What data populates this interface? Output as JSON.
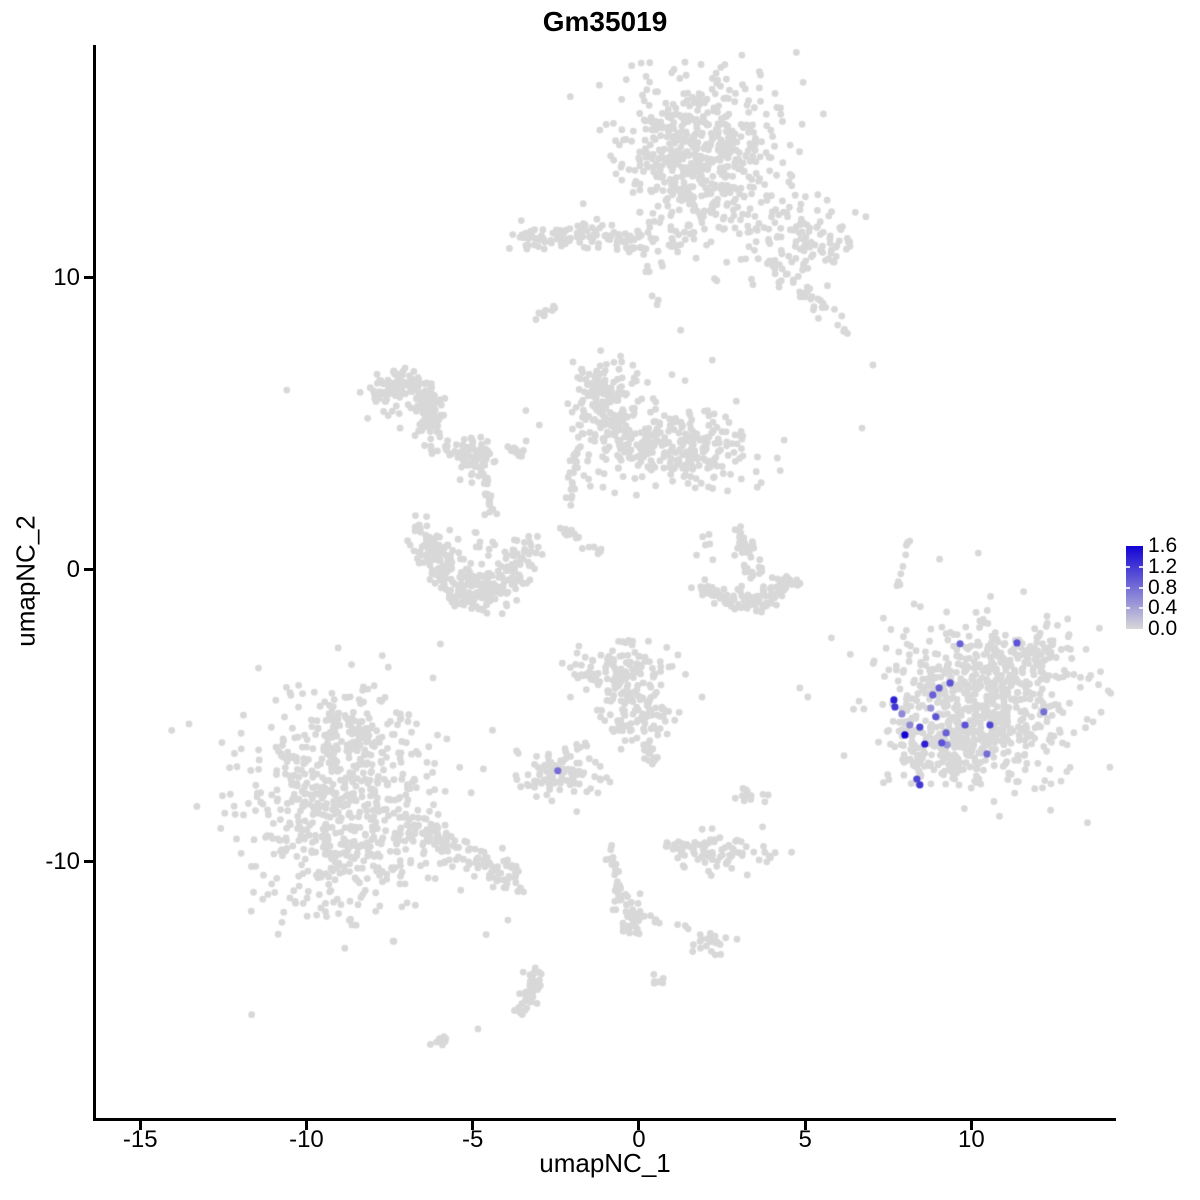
{
  "chart_data": {
    "type": "scatter",
    "title": "Gm35019",
    "xlabel": "umapNC_1",
    "ylabel": "umapNC_2",
    "xlim": [
      -16.36,
      14.32
    ],
    "ylim": [
      -18.77,
      17.98
    ],
    "x_tick_values": [
      -15,
      -10,
      -5,
      0,
      5,
      10
    ],
    "x_tick_labels": [
      "-15",
      "-10",
      "-5",
      "0",
      "5",
      "10"
    ],
    "y_tick_values": [
      10,
      0,
      -10
    ],
    "y_tick_labels": [
      "10",
      "0",
      "-10"
    ],
    "grid": false,
    "point_color": "#d8d8d8",
    "legend": {
      "position": "right",
      "min": 0.0,
      "max": 1.6,
      "low_color": "#d8d8d8",
      "high_color": "#1203d4",
      "entries": [
        {
          "label": "1.6",
          "value": 1.6
        },
        {
          "label": "1.2",
          "value": 1.2
        },
        {
          "label": "0.8",
          "value": 0.8
        },
        {
          "label": "0.4",
          "value": 0.4
        },
        {
          "label": "0.0",
          "value": 0.0
        }
      ]
    },
    "seed": 11,
    "clusters": [
      {
        "shape": "gauss",
        "cx": 1.75,
        "cy": 14.2,
        "sx": 1.1,
        "sy": 1.4,
        "n": 540
      },
      {
        "shape": "gauss",
        "cx": 1.75,
        "cy": 14.2,
        "sx": 1.9,
        "sy": 2.2,
        "n": 60
      },
      {
        "shape": "gauss",
        "cx": 4.55,
        "cy": 11.7,
        "sx": 0.9,
        "sy": 0.75,
        "n": 65
      },
      {
        "shape": "gauss",
        "cx": 5.4,
        "cy": 11.05,
        "sx": 0.5,
        "sy": 0.42,
        "n": 45
      },
      {
        "shape": "chain",
        "path": [
          [
            3.95,
            10.55
          ],
          [
            6.15,
            8.35
          ]
        ],
        "w": 0.26,
        "n": 38
      },
      {
        "shape": "chain",
        "path": [
          [
            -3.64,
            11.3
          ],
          [
            -1.9,
            11.58
          ],
          [
            0.05,
            11.2
          ]
        ],
        "w": 0.36,
        "n": 115
      },
      {
        "shape": "gauss",
        "cx": 1.0,
        "cy": 11.1,
        "sx": 0.62,
        "sy": 0.5,
        "n": 22
      },
      {
        "shape": "chain",
        "path": [
          [
            -3.13,
            8.63
          ],
          [
            -2.47,
            9.04
          ]
        ],
        "w": 0.12,
        "n": 9
      },
      {
        "shape": "chain",
        "path": [
          [
            -7.85,
            5.96
          ],
          [
            -7.46,
            6.4
          ],
          [
            -6.89,
            6.4
          ],
          [
            -6.44,
            5.96
          ],
          [
            -6.26,
            5.38
          ],
          [
            -6.38,
            4.56
          ]
        ],
        "w": 0.4,
        "n": 175
      },
      {
        "shape": "gauss",
        "cx": -7.0,
        "cy": 5.6,
        "sx": 0.5,
        "sy": 0.45,
        "n": 20
      },
      {
        "shape": "chain",
        "path": [
          [
            -6.47,
            4.25
          ],
          [
            -4.48,
            4.04
          ]
        ],
        "w": 0.2,
        "n": 34
      },
      {
        "shape": "gauss",
        "cx": -4.93,
        "cy": 3.8,
        "sx": 0.3,
        "sy": 0.34,
        "n": 55
      },
      {
        "shape": "chain",
        "path": [
          [
            -3.97,
            4.14
          ],
          [
            -3.37,
            3.94
          ]
        ],
        "w": 0.15,
        "n": 13
      },
      {
        "shape": "chain",
        "path": [
          [
            -4.6,
            3.32
          ],
          [
            -4.42,
            1.71
          ]
        ],
        "w": 0.14,
        "n": 20
      },
      {
        "shape": "chain",
        "path": [
          [
            -6.47,
            1.3
          ],
          [
            -6.11,
            0.14
          ],
          [
            -5.5,
            -0.55
          ],
          [
            -4.84,
            -0.89
          ],
          [
            -4.15,
            -0.62
          ],
          [
            -3.7,
            0.03
          ],
          [
            -3.46,
            0.79
          ]
        ],
        "w": 0.5,
        "n": 270
      },
      {
        "shape": "gauss",
        "cx": -5.05,
        "cy": 0.55,
        "sx": 0.75,
        "sy": 0.45,
        "n": 28
      },
      {
        "shape": "gauss",
        "cx": -0.87,
        "cy": 5.3,
        "sx": 0.62,
        "sy": 0.95,
        "n": 150
      },
      {
        "shape": "gauss",
        "cx": -1.17,
        "cy": 6.16,
        "sx": 0.34,
        "sy": 0.33,
        "n": 45
      },
      {
        "shape": "gauss",
        "cx": 1.7,
        "cy": 4.1,
        "sx": 0.9,
        "sy": 0.68,
        "n": 150
      },
      {
        "shape": "gauss",
        "cx": 0.33,
        "cy": 4.38,
        "sx": 0.75,
        "sy": 0.5,
        "n": 70
      },
      {
        "shape": "gauss",
        "cx": 0.35,
        "cy": 4.8,
        "sx": 1.6,
        "sy": 1.2,
        "n": 55
      },
      {
        "shape": "chain",
        "path": [
          [
            -1.87,
            4.28
          ],
          [
            -2.05,
            2.33
          ]
        ],
        "w": 0.13,
        "n": 20
      },
      {
        "shape": "chain",
        "path": [
          [
            -2.38,
            1.47
          ],
          [
            -0.96,
            0.45
          ]
        ],
        "w": 0.15,
        "n": 20
      },
      {
        "shape": "chain",
        "path": [
          [
            2.98,
            1.34
          ],
          [
            3.4,
            0.41
          ],
          [
            3.55,
            -0.27
          ]
        ],
        "w": 0.26,
        "n": 45
      },
      {
        "shape": "chain",
        "path": [
          [
            1.93,
            -0.62
          ],
          [
            2.5,
            -1.03
          ],
          [
            3.4,
            -1.13
          ],
          [
            4.18,
            -0.75
          ],
          [
            4.54,
            -0.27
          ]
        ],
        "w": 0.32,
        "n": 115
      },
      {
        "shape": "gauss",
        "cx": 2.0,
        "cy": 0.65,
        "sx": 0.3,
        "sy": 0.3,
        "n": 6
      },
      {
        "shape": "chain",
        "path": [
          [
            8.09,
            1.0
          ],
          [
            7.76,
            -0.55
          ]
        ],
        "w": 0.08,
        "n": 9
      },
      {
        "shape": "gauss",
        "cx": -9.0,
        "cy": -8.5,
        "sx": 1.42,
        "sy": 1.65,
        "n": 520
      },
      {
        "shape": "gauss",
        "cx": -8.63,
        "cy": -5.75,
        "sx": 0.9,
        "sy": 0.72,
        "n": 140
      },
      {
        "shape": "gauss",
        "cx": -8.9,
        "cy": -7.9,
        "sx": 2.1,
        "sy": 2.4,
        "n": 85
      },
      {
        "shape": "chain",
        "path": [
          [
            -7.19,
            -8.49
          ],
          [
            -5.54,
            -9.52
          ],
          [
            -4.03,
            -10.34
          ],
          [
            -3.64,
            -10.75
          ]
        ],
        "w": 0.45,
        "n": 115
      },
      {
        "shape": "gauss",
        "cx": -2.44,
        "cy": -6.92,
        "sx": 0.6,
        "sy": 0.4,
        "n": 90
      },
      {
        "shape": "chain",
        "path": [
          [
            -1.6,
            -5.86
          ],
          [
            -1.84,
            -6.1
          ]
        ],
        "w": 0.08,
        "n": 4
      },
      {
        "shape": "gauss",
        "cx": -0.51,
        "cy": -3.49,
        "sx": 0.72,
        "sy": 0.55,
        "n": 125
      },
      {
        "shape": "gauss",
        "cx": -0.09,
        "cy": -4.97,
        "sx": 0.55,
        "sy": 0.62,
        "n": 95
      },
      {
        "shape": "chain",
        "path": [
          [
            0.18,
            -5.82
          ],
          [
            0.48,
            -6.58
          ]
        ],
        "w": 0.2,
        "n": 16
      },
      {
        "shape": "gauss",
        "cx": 3.25,
        "cy": -7.74,
        "sx": 0.26,
        "sy": 0.15,
        "n": 12
      },
      {
        "shape": "gauss",
        "cx": 2.32,
        "cy": -9.59,
        "sx": 0.78,
        "sy": 0.3,
        "n": 85
      },
      {
        "shape": "chain",
        "path": [
          [
            -0.96,
            -9.35
          ],
          [
            -0.51,
            -10.96
          ],
          [
            -0.18,
            -12.26
          ]
        ],
        "w": 0.18,
        "n": 34
      },
      {
        "shape": "gauss",
        "cx": -0.27,
        "cy": -11.85,
        "sx": 0.25,
        "sy": 0.38,
        "n": 30
      },
      {
        "shape": "chain",
        "path": [
          [
            0.12,
            -11.85
          ],
          [
            1.6,
            -12.33
          ]
        ],
        "w": 0.1,
        "n": 8
      },
      {
        "shape": "gauss",
        "cx": 2.2,
        "cy": -12.7,
        "sx": 0.28,
        "sy": 0.26,
        "n": 22
      },
      {
        "shape": "gauss",
        "cx": 0.54,
        "cy": -14.04,
        "sx": 0.18,
        "sy": 0.12,
        "n": 7
      },
      {
        "shape": "chain",
        "path": [
          [
            -3.31,
            -13.6
          ],
          [
            -3.1,
            -14.21
          ],
          [
            -3.31,
            -14.8
          ],
          [
            -3.7,
            -15.17
          ]
        ],
        "w": 0.2,
        "n": 48
      },
      {
        "shape": "chain",
        "path": [
          [
            -6.2,
            -16.3
          ],
          [
            -5.78,
            -16.03
          ]
        ],
        "w": 0.1,
        "n": 9
      },
      {
        "shape": "gauss",
        "cx": 10.26,
        "cy": -4.52,
        "sx": 1.42,
        "sy": 1.27,
        "n": 520
      },
      {
        "shape": "gauss",
        "cx": 11.4,
        "cy": -3.22,
        "sx": 0.85,
        "sy": 0.55,
        "n": 110
      },
      {
        "shape": "gauss",
        "cx": 9.42,
        "cy": -6.23,
        "sx": 0.85,
        "sy": 0.5,
        "n": 115
      },
      {
        "shape": "gauss",
        "cx": 10.2,
        "cy": -4.6,
        "sx": 1.95,
        "sy": 1.8,
        "n": 75
      },
      {
        "shape": "chain",
        "path": [
          [
            7.64,
            -4.45
          ],
          [
            8.09,
            -5.41
          ],
          [
            8.33,
            -6.23
          ],
          [
            8.39,
            -7.02
          ],
          [
            8.6,
            -7.47
          ]
        ],
        "w": 0.2,
        "n": 28
      },
      {
        "shape": "gauss",
        "cx": 9.2,
        "cy": -3.43,
        "sx": 0.6,
        "sy": 0.5,
        "n": 22
      }
    ],
    "singles": [
      [
        -10.59,
        6.16
      ],
      [
        7.04,
        7.02
      ],
      [
        6.71,
        4.86
      ],
      [
        1.9,
        -4.35
      ],
      [
        4.84,
        -4.04
      ],
      [
        5.08,
        -4.35
      ],
      [
        -0.78,
        -11.64
      ],
      [
        -3.94,
        -11.99
      ],
      [
        -4.84,
        -15.72
      ],
      [
        -1.17,
        -7.16
      ],
      [
        -0.87,
        -7.26
      ],
      [
        -2.77,
        -7.7
      ],
      [
        -2.62,
        -7.91
      ]
    ],
    "expressed_cells": [
      {
        "x": 9.66,
        "y": -2.53,
        "value": 0.9
      },
      {
        "x": 11.37,
        "y": -2.5,
        "value": 1.0
      },
      {
        "x": 9.36,
        "y": -3.87,
        "value": 1.0
      },
      {
        "x": 9.03,
        "y": -4.04,
        "value": 0.9
      },
      {
        "x": 8.84,
        "y": -4.28,
        "value": 0.9
      },
      {
        "x": 7.67,
        "y": -4.45,
        "value": 1.4
      },
      {
        "x": 7.7,
        "y": -4.69,
        "value": 1.2
      },
      {
        "x": 7.91,
        "y": -4.93,
        "value": 0.6
      },
      {
        "x": 8.15,
        "y": -5.31,
        "value": 0.6
      },
      {
        "x": 8.78,
        "y": -4.73,
        "value": 0.5
      },
      {
        "x": 8.93,
        "y": -5.03,
        "value": 1.0
      },
      {
        "x": 8.45,
        "y": -5.38,
        "value": 1.1
      },
      {
        "x": 9.24,
        "y": -5.58,
        "value": 0.9
      },
      {
        "x": 9.81,
        "y": -5.31,
        "value": 1.0
      },
      {
        "x": 10.56,
        "y": -5.31,
        "value": 1.1
      },
      {
        "x": 8.0,
        "y": -5.65,
        "value": 1.6
      },
      {
        "x": 8.6,
        "y": -5.96,
        "value": 1.4
      },
      {
        "x": 9.11,
        "y": -5.92,
        "value": 1.0
      },
      {
        "x": 9.27,
        "y": -5.99,
        "value": 0.5
      },
      {
        "x": 10.47,
        "y": -6.3,
        "value": 0.8
      },
      {
        "x": 12.18,
        "y": -4.86,
        "value": 0.8
      },
      {
        "x": 8.36,
        "y": -7.16,
        "value": 1.1
      },
      {
        "x": 8.45,
        "y": -7.36,
        "value": 1.2
      },
      {
        "x": -2.44,
        "y": -6.88,
        "value": 0.8
      }
    ]
  }
}
